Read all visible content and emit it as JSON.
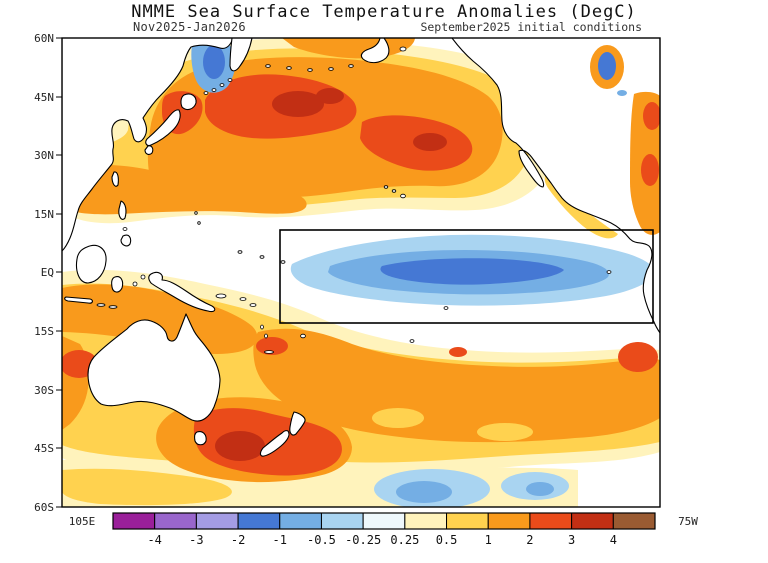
{
  "figure": {
    "title": "NMME Sea Surface Temperature Anomalies (DegC)",
    "subtitle_left": "Nov2025-Jan2026",
    "subtitle_right": "September2025 initial conditions"
  },
  "map": {
    "lat_labels": [
      "60N",
      "45N",
      "30N",
      "15N",
      "EQ",
      "15S",
      "30S",
      "45S",
      "60S"
    ],
    "lon_labels": [
      "105E",
      "75W"
    ]
  },
  "colorbar": {
    "tick_labels": [
      "-4",
      "-3",
      "-2",
      "-1",
      "-0.5",
      "-0.25",
      "0.25",
      "0.5",
      "1",
      "2",
      "3",
      "4"
    ],
    "colors": [
      "#9A1F9A",
      "#9966CC",
      "#A49CE4",
      "#4578D4",
      "#74AEE4",
      "#A9D4F1",
      "#EFF8FC",
      "#FFF3BC",
      "#FFD24F",
      "#F99A1C",
      "#EA4B1A",
      "#C22F14",
      "#9A5B32"
    ]
  }
}
